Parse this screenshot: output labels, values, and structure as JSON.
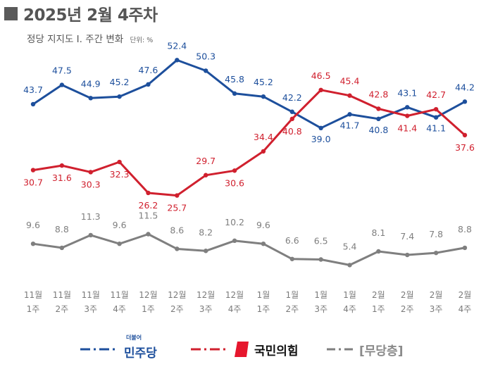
{
  "header": {
    "title": "2025년 2월 4주차",
    "subtitle": "정당 지지도 Ⅰ. 주간 변화",
    "unit": "단위: %"
  },
  "chart_data": {
    "type": "line",
    "categories": [
      [
        "11월",
        "1주"
      ],
      [
        "11월",
        "2주"
      ],
      [
        "11월",
        "3주"
      ],
      [
        "11월",
        "4주"
      ],
      [
        "12월",
        "1주"
      ],
      [
        "12월",
        "2주"
      ],
      [
        "12월",
        "3주"
      ],
      [
        "12월",
        "4주"
      ],
      [
        "1월",
        "1주"
      ],
      [
        "1월",
        "2주"
      ],
      [
        "1월",
        "3주"
      ],
      [
        "1월",
        "4주"
      ],
      [
        "2월",
        "1주"
      ],
      [
        "2월",
        "2주"
      ],
      [
        "2월",
        "3주"
      ],
      [
        "2월",
        "4주"
      ]
    ],
    "series": [
      {
        "name": "더불어민주당",
        "color": "#1d4f9c",
        "values": [
          43.7,
          47.5,
          44.9,
          45.2,
          47.6,
          52.4,
          50.3,
          45.8,
          45.2,
          42.2,
          39.0,
          41.7,
          40.8,
          43.1,
          41.1,
          44.2
        ]
      },
      {
        "name": "국민의힘",
        "color": "#d0202e",
        "values": [
          30.7,
          31.6,
          30.3,
          32.3,
          26.2,
          25.7,
          29.7,
          30.6,
          34.4,
          40.8,
          46.5,
          45.4,
          42.8,
          41.4,
          42.7,
          37.6
        ]
      },
      {
        "name": "[무당층]",
        "color": "#7f7f7f",
        "values": [
          9.6,
          8.8,
          11.3,
          9.6,
          11.5,
          8.6,
          8.2,
          10.2,
          9.6,
          6.6,
          6.5,
          5.4,
          8.1,
          7.4,
          7.8,
          8.8
        ]
      }
    ],
    "grid": false,
    "legend_position": "bottom"
  },
  "legend": {
    "dem_small_label": "더불어",
    "dem_label": "민주당",
    "ppp_label": "국민의힘",
    "none_label": "[무당층]"
  }
}
